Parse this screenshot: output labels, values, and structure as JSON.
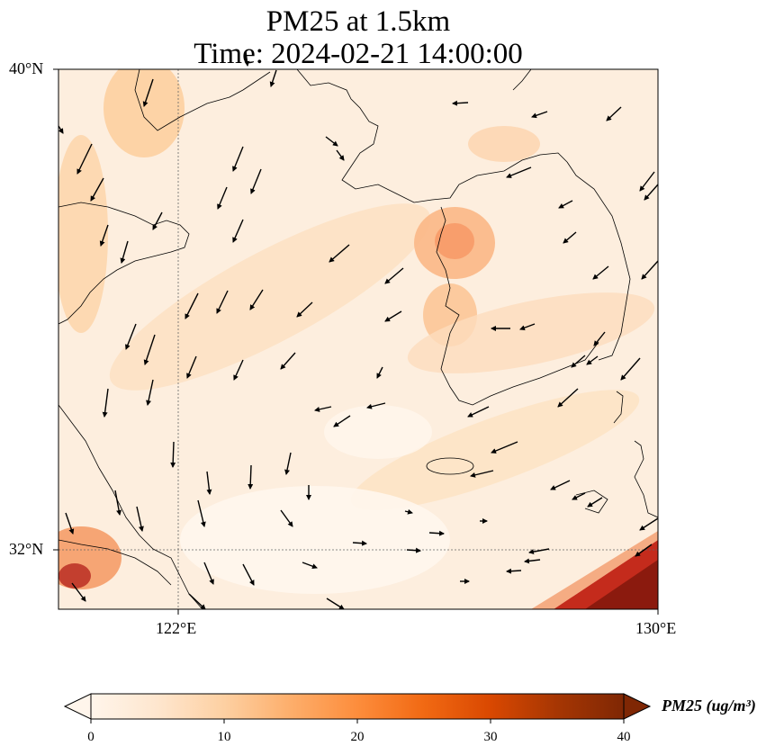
{
  "map": {
    "title_line1": "PM25 at 1.5km",
    "title_line2": "Time: 2024-02-21 14:00:00",
    "lon_labels": [
      "122°E",
      "130°E"
    ],
    "lat_labels": [
      "40°N",
      "32°N"
    ],
    "extent": {
      "lon": [
        120,
        130
      ],
      "lat": [
        31,
        40
      ]
    },
    "variable": "PM25",
    "colorbar": {
      "label": "PM25 (ug/m³)",
      "ticks": [
        "0",
        "10",
        "20",
        "30",
        "40"
      ],
      "min": 0,
      "max": 40,
      "extend": "both",
      "colors": [
        "#fff5eb",
        "#fee6ce",
        "#fdd0a2",
        "#fdae6b",
        "#fd8d3c",
        "#f16913",
        "#d94801",
        "#a63603",
        "#7f2704"
      ]
    }
  }
}
